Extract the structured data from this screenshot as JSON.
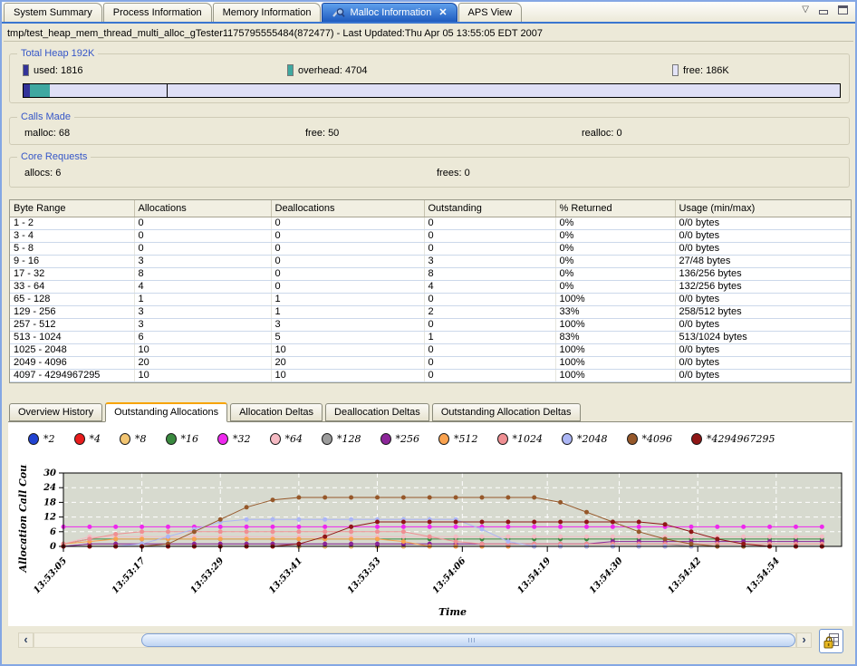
{
  "window": {
    "tabs": [
      {
        "label": "System Summary",
        "active": false
      },
      {
        "label": "Process Information",
        "active": false
      },
      {
        "label": "Memory Information",
        "active": false
      },
      {
        "label": "Malloc Information",
        "active": true,
        "closable": true,
        "icon": "malloc-view-icon"
      },
      {
        "label": "APS View",
        "active": false
      }
    ],
    "tab_close_glyph": "✕",
    "controls": {
      "menu_glyph": "▽"
    }
  },
  "header": {
    "text": "tmp/test_heap_mem_thread_multi_alloc_gTester1175795555484(872477)  - Last Updated:Thu Apr 05 13:55:05 EDT 2007"
  },
  "total_heap": {
    "title": "Total Heap 192K",
    "legend": [
      {
        "label": "used:  1816",
        "color": "#333399"
      },
      {
        "label": "overhead:  4704",
        "color": "#3fa8a0"
      },
      {
        "label": "free:  186K",
        "color": "#e4e4f8"
      }
    ],
    "bar": {
      "segments": [
        {
          "name": "used",
          "color": "#333399",
          "pct": 0.8
        },
        {
          "name": "overhead",
          "color": "#3fa8a0",
          "pct": 2.4
        },
        {
          "name": "free",
          "color": "#dfdff5",
          "pct": 96.8
        }
      ],
      "divider_pct": 17.5
    }
  },
  "calls_made": {
    "title": "Calls Made",
    "stats": [
      {
        "label": "malloc:",
        "value": "68"
      },
      {
        "label": "free:",
        "value": "50"
      },
      {
        "label": "realloc:",
        "value": "0"
      }
    ]
  },
  "core_requests": {
    "title": "Core Requests",
    "stats": [
      {
        "label": "allocs:",
        "value": "6"
      },
      {
        "label": "frees:",
        "value": "0"
      }
    ]
  },
  "table": {
    "columns": [
      "Byte Range",
      "Allocations",
      "Deallocations",
      "Outstanding",
      "% Returned",
      "Usage (min/max)"
    ],
    "rows": [
      [
        "1 - 2",
        "0",
        "0",
        "0",
        "0%",
        "0/0 bytes"
      ],
      [
        "3 - 4",
        "0",
        "0",
        "0",
        "0%",
        "0/0 bytes"
      ],
      [
        "5 - 8",
        "0",
        "0",
        "0",
        "0%",
        "0/0 bytes"
      ],
      [
        "9 - 16",
        "3",
        "0",
        "3",
        "0%",
        "27/48 bytes"
      ],
      [
        "17 - 32",
        "8",
        "0",
        "8",
        "0%",
        "136/256 bytes"
      ],
      [
        "33 - 64",
        "4",
        "0",
        "4",
        "0%",
        "132/256 bytes"
      ],
      [
        "65 - 128",
        "1",
        "1",
        "0",
        "100%",
        "0/0 bytes"
      ],
      [
        "129 - 256",
        "3",
        "1",
        "2",
        "33%",
        "258/512 bytes"
      ],
      [
        "257 - 512",
        "3",
        "3",
        "0",
        "100%",
        "0/0 bytes"
      ],
      [
        "513 - 1024",
        "6",
        "5",
        "1",
        "83%",
        "513/1024 bytes"
      ],
      [
        "1025 - 2048",
        "10",
        "10",
        "0",
        "100%",
        "0/0 bytes"
      ],
      [
        "2049 - 4096",
        "20",
        "20",
        "0",
        "100%",
        "0/0 bytes"
      ],
      [
        "4097 - 4294967295",
        "10",
        "10",
        "0",
        "100%",
        "0/0 bytes"
      ]
    ]
  },
  "chart_tabs": [
    {
      "label": "Overview History",
      "active": false
    },
    {
      "label": "Outstanding Allocations",
      "active": true
    },
    {
      "label": "Allocation Deltas",
      "active": false
    },
    {
      "label": "Deallocation Deltas",
      "active": false
    },
    {
      "label": "Outstanding Allocation Deltas",
      "active": false
    }
  ],
  "chart_data": {
    "type": "line",
    "title": "",
    "xlabel": "Time",
    "ylabel": "Allocation Call Counts",
    "ylim": [
      0,
      30
    ],
    "yticks": [
      0,
      6,
      12,
      18,
      24,
      30
    ],
    "grid": true,
    "legend_position": "top",
    "plot_bg": "#d7dacf",
    "x_tick_labels": [
      "13:53:05",
      "13:53:17",
      "13:53:29",
      "13:53:41",
      "13:53:53",
      "13:54:06",
      "13:54:19",
      "13:54:30",
      "13:54:42",
      "13:54:54"
    ],
    "x_tick_seconds": [
      0,
      12,
      24,
      36,
      48,
      61,
      74,
      85,
      97,
      109
    ],
    "x_max_seconds": 119,
    "x_seconds": [
      0,
      4,
      8,
      12,
      16,
      20,
      24,
      28,
      32,
      36,
      40,
      44,
      48,
      52,
      56,
      60,
      64,
      68,
      72,
      76,
      80,
      84,
      88,
      92,
      96,
      100,
      104,
      108,
      112,
      116
    ],
    "series": [
      {
        "name": "*2",
        "color": "#2143d1",
        "values": [
          0,
          0,
          0,
          0,
          0,
          0,
          0,
          0,
          0,
          0,
          0,
          0,
          0,
          0,
          0,
          0,
          0,
          0,
          0,
          0,
          0,
          0,
          0,
          0,
          0,
          0,
          0,
          0,
          0,
          0
        ]
      },
      {
        "name": "*4",
        "color": "#e81c1c",
        "values": [
          0,
          0,
          0,
          0,
          0,
          0,
          0,
          0,
          0,
          0,
          0,
          0,
          0,
          0,
          0,
          0,
          0,
          0,
          0,
          0,
          0,
          0,
          0,
          0,
          0,
          0,
          0,
          0,
          0,
          0
        ]
      },
      {
        "name": "*8",
        "color": "#f2c572",
        "values": [
          0,
          0,
          0,
          0,
          0,
          0,
          0,
          0,
          0,
          0,
          0,
          0,
          0,
          0,
          0,
          0,
          0,
          0,
          0,
          0,
          0,
          0,
          0,
          0,
          0,
          0,
          0,
          0,
          0,
          0
        ]
      },
      {
        "name": "*16",
        "color": "#3a8a3f",
        "values": [
          1,
          3,
          3,
          3,
          3,
          3,
          3,
          3,
          3,
          3,
          3,
          3,
          3,
          3,
          3,
          3,
          3,
          3,
          3,
          3,
          3,
          3,
          3,
          3,
          3,
          3,
          3,
          3,
          3,
          3
        ]
      },
      {
        "name": "*32",
        "color": "#ee28ee",
        "values": [
          8,
          8,
          8,
          8,
          8,
          8,
          8,
          8,
          8,
          8,
          8,
          8,
          8,
          8,
          8,
          8,
          8,
          8,
          8,
          8,
          8,
          8,
          8,
          8,
          8,
          8,
          8,
          8,
          8,
          8
        ]
      },
      {
        "name": "*64",
        "color": "#f5bac3",
        "values": [
          1,
          4,
          4,
          4,
          4,
          4,
          4,
          4,
          4,
          4,
          4,
          4,
          4,
          4,
          4,
          4,
          4,
          4,
          4,
          4,
          4,
          4,
          4,
          4,
          4,
          4,
          4,
          4,
          4,
          4
        ]
      },
      {
        "name": "*128",
        "color": "#9c9c9c",
        "values": [
          0,
          1,
          1,
          1,
          1,
          1,
          1,
          1,
          1,
          1,
          1,
          1,
          1,
          1,
          1,
          1,
          1,
          1,
          1,
          1,
          1,
          1,
          1,
          1,
          0,
          0,
          0,
          0,
          0,
          0
        ]
      },
      {
        "name": "*256",
        "color": "#8c2699",
        "values": [
          0,
          1,
          1,
          1,
          1,
          1,
          1,
          1,
          1,
          1,
          1,
          1,
          1,
          1,
          1,
          1,
          1,
          1,
          1,
          1,
          1,
          2,
          2,
          2,
          2,
          2,
          2,
          2,
          2,
          2
        ]
      },
      {
        "name": "*512",
        "color": "#f9a24f",
        "values": [
          1,
          2,
          3,
          3,
          3,
          3,
          3,
          3,
          3,
          3,
          3,
          3,
          3,
          2,
          0,
          0,
          0,
          0,
          0,
          0,
          0,
          0,
          0,
          0,
          0,
          0,
          0,
          0,
          0,
          0
        ]
      },
      {
        "name": "*1024",
        "color": "#ef8f93",
        "values": [
          1,
          3,
          5,
          6,
          6,
          6,
          6,
          6,
          6,
          6,
          6,
          6,
          6,
          6,
          4,
          2,
          1,
          1,
          1,
          1,
          1,
          1,
          1,
          1,
          1,
          1,
          1,
          1,
          1,
          1
        ]
      },
      {
        "name": "*2048",
        "color": "#acb6f5",
        "values": [
          0,
          0,
          0,
          1,
          4,
          7,
          10,
          11,
          11,
          11,
          11,
          11,
          11,
          11,
          11,
          11,
          7,
          2,
          0,
          0,
          0,
          0,
          0,
          0,
          0,
          0,
          0,
          0,
          0,
          0
        ]
      },
      {
        "name": "*4096",
        "color": "#96582a",
        "values": [
          0,
          0,
          0,
          0,
          1,
          6,
          11,
          16,
          19,
          20,
          20,
          20,
          20,
          20,
          20,
          20,
          20,
          20,
          20,
          18,
          14,
          10,
          6,
          3,
          1,
          0,
          0,
          0,
          0,
          0
        ]
      },
      {
        "name": "*4294967295",
        "color": "#8f1616",
        "values": [
          0,
          0,
          0,
          0,
          0,
          0,
          0,
          0,
          0,
          1,
          4,
          8,
          10,
          10,
          10,
          10,
          10,
          10,
          10,
          10,
          10,
          10,
          10,
          9,
          6,
          3,
          1,
          0,
          0,
          0
        ]
      }
    ]
  },
  "scrollbar": {
    "left_glyph": "‹",
    "right_glyph": "›"
  }
}
